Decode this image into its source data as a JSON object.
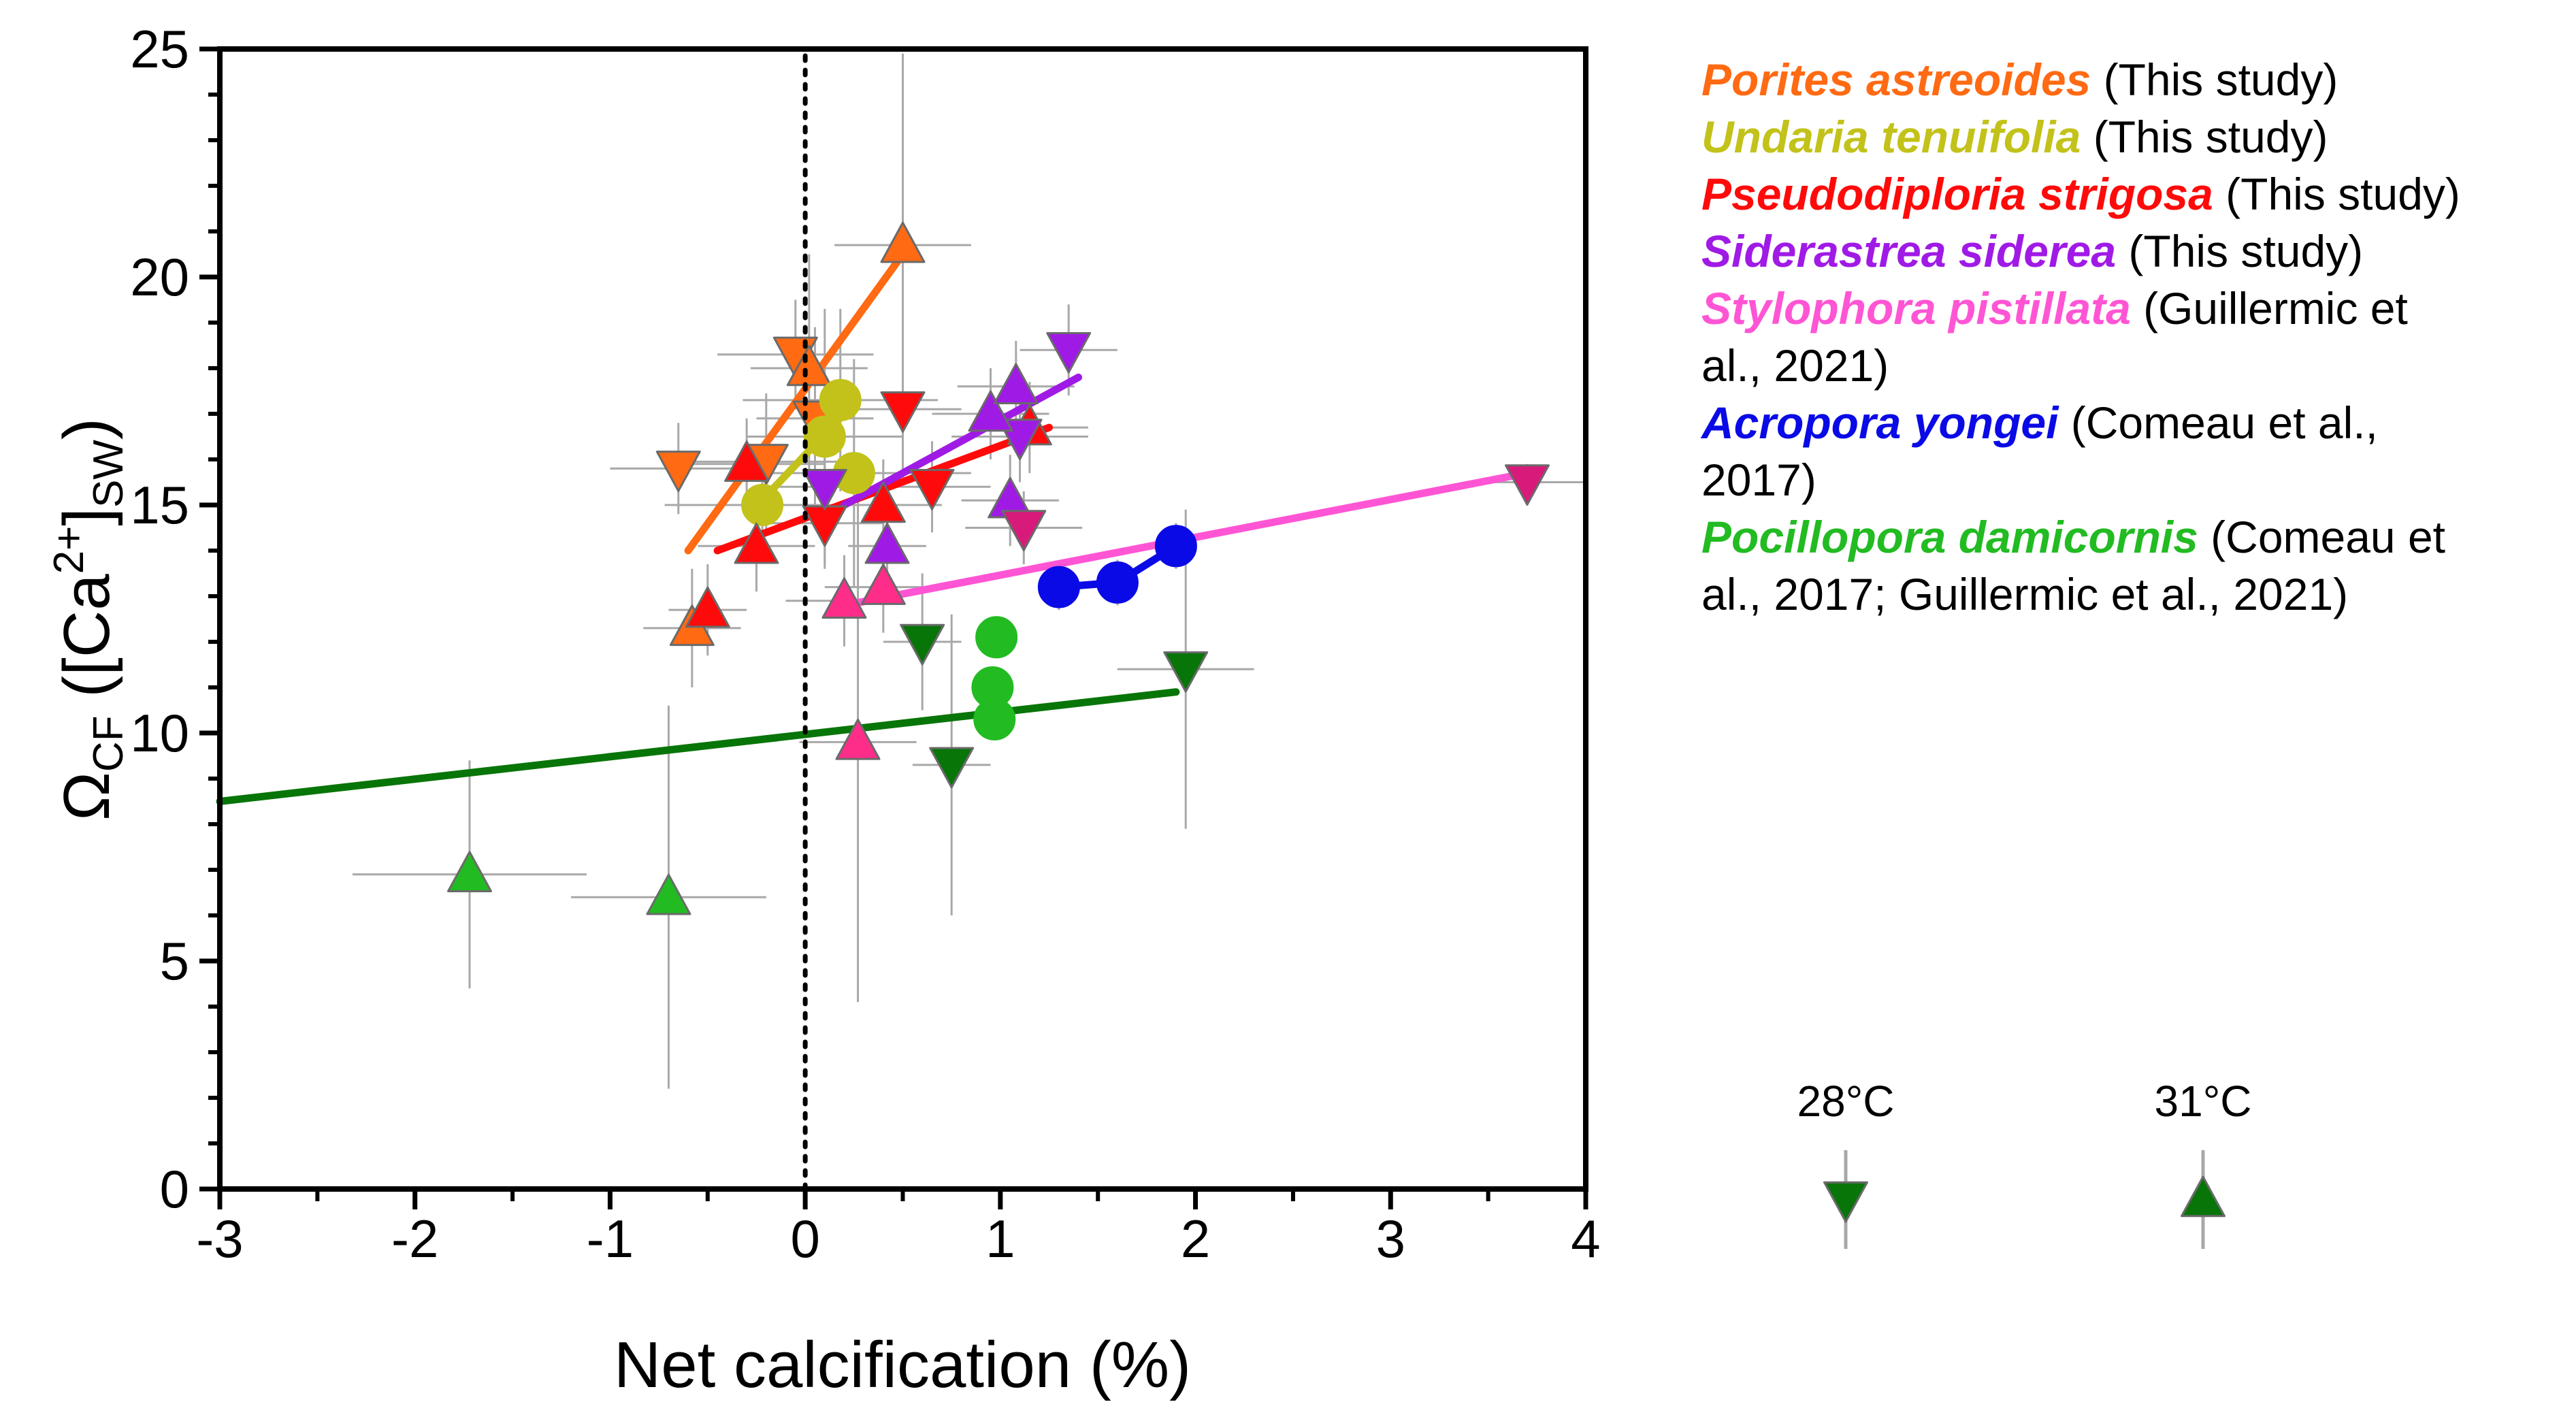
{
  "chart_data": {
    "type": "scatter",
    "xlabel": "Net calcification (%)",
    "ylabel": {
      "main": "Ω",
      "sub1": "CF",
      "open": " ([Ca",
      "sup": "2+",
      "close": "]",
      "sub2": "SW",
      "end": ")"
    },
    "xlim": [
      -3,
      4
    ],
    "ylim": [
      0,
      25
    ],
    "x_ticks": [
      -3,
      -2,
      -1,
      0,
      1,
      2,
      3,
      4
    ],
    "y_ticks": [
      0,
      5,
      10,
      15,
      20,
      25
    ],
    "x_tick_labels": [
      "-3",
      "-2",
      "-1",
      "0",
      "1",
      "2",
      "3",
      "4"
    ],
    "y_tick_labels": [
      "0",
      "5",
      "10",
      "15",
      "20",
      "25"
    ],
    "reference_line_x": 0,
    "legend": [
      {
        "species": "Porites astreoides",
        "source": " (This study)",
        "color": "#ff6a13"
      },
      {
        "species": "Undaria tenuifolia",
        "source": " (This study)",
        "color": "#c2c21a"
      },
      {
        "species": "Pseudodiploria strigosa",
        "source": " (This study)",
        "color": "#ff0a0a"
      },
      {
        "species": "Siderastrea siderea",
        "source": " (This study)",
        "color": "#a01ae6"
      },
      {
        "species": "Stylophora pistillata",
        "source": " (Guillermic et",
        "source_line2": "al., 2021)",
        "color": "#ff55d4"
      },
      {
        "species": "Acropora yongei",
        "source": " (Comeau et al.,",
        "source_line2": "2017)",
        "color": "#0a0ae6"
      },
      {
        "species": "Pocillopora damicornis",
        "source": " (Comeau et",
        "source_line2": "al., 2017; Guillermic et al., 2021)",
        "color": "#22bb22"
      }
    ],
    "temperature_key": [
      {
        "label": "28°C",
        "marker": "down",
        "color": "#087508"
      },
      {
        "label": "31°C",
        "marker": "up",
        "color": "#087508"
      }
    ],
    "series": [
      {
        "name": "Porites astreoides",
        "color": "#ff6a13",
        "line": [
          [
            -0.6,
            14.0
          ],
          [
            0.5,
            20.5
          ]
        ],
        "points": [
          {
            "x": -0.65,
            "y": 15.8,
            "m": "down",
            "ex": 0.35,
            "ey": 1.0
          },
          {
            "x": -0.2,
            "y": 15.95,
            "m": "down",
            "ex": 0.4,
            "ey": 1.5
          },
          {
            "x": -0.05,
            "y": 18.3,
            "m": "down",
            "ex": 0.4,
            "ey": 1.2
          },
          {
            "x": 0.05,
            "y": 16.9,
            "m": "down",
            "ex": 0.3,
            "ey": 2.0
          },
          {
            "x": -0.58,
            "y": 12.3,
            "m": "up",
            "ex": 0.25,
            "ey": 1.3
          },
          {
            "x": 0.02,
            "y": 18.0,
            "m": "up",
            "ex": 0.3,
            "ey": 2.5
          },
          {
            "x": 0.5,
            "y": 20.7,
            "m": "up",
            "ex": 0.35,
            "ey": 4.2
          }
        ]
      },
      {
        "name": "Undaria tenuifolia",
        "color": "#c2c21a",
        "line": [
          [
            -0.2,
            15.2
          ],
          [
            0.2,
            17.0
          ]
        ],
        "points": [
          {
            "x": -0.22,
            "y": 15.0,
            "m": "circle",
            "ex": 0.5,
            "ey": 1.2
          },
          {
            "x": 0.1,
            "y": 16.5,
            "m": "circle",
            "ex": 0.4,
            "ey": 2.8
          },
          {
            "x": 0.18,
            "y": 17.3,
            "m": "circle",
            "ex": 0.5,
            "ey": 2.0
          },
          {
            "x": 0.25,
            "y": 15.7,
            "m": "circle",
            "ex": 0.6,
            "ey": 2.5
          }
        ]
      },
      {
        "name": "Pseudodiploria strigosa",
        "color": "#ff0a0a",
        "line": [
          [
            -0.45,
            14.0
          ],
          [
            1.25,
            16.7
          ]
        ],
        "points": [
          {
            "x": 0.5,
            "y": 17.1,
            "m": "down",
            "ex": 0.3,
            "ey": 1.5
          },
          {
            "x": 0.1,
            "y": 14.6,
            "m": "down",
            "ex": 0.3,
            "ey": 1.0
          },
          {
            "x": 0.65,
            "y": 15.4,
            "m": "down",
            "ex": 0.3,
            "ey": 1.0
          },
          {
            "x": -0.3,
            "y": 15.9,
            "m": "up",
            "ex": 0.4,
            "ey": 1.0
          },
          {
            "x": -0.25,
            "y": 14.1,
            "m": "up",
            "ex": 0.3,
            "ey": 1.0
          },
          {
            "x": -0.5,
            "y": 12.7,
            "m": "up",
            "ex": 0.2,
            "ey": 1.0
          },
          {
            "x": 0.4,
            "y": 15.0,
            "m": "up",
            "ex": 0.3,
            "ey": 1.0
          },
          {
            "x": 1.15,
            "y": 16.7,
            "m": "up",
            "ex": 0.3,
            "ey": 1.0
          }
        ]
      },
      {
        "name": "Siderastrea siderea",
        "color": "#a01ae6",
        "line": [
          [
            0.2,
            15.0
          ],
          [
            1.4,
            17.8
          ]
        ],
        "points": [
          {
            "x": 0.1,
            "y": 15.4,
            "m": "down",
            "ex": 0.25,
            "ey": 0.8
          },
          {
            "x": 1.35,
            "y": 18.4,
            "m": "down",
            "ex": 0.25,
            "ey": 1.0
          },
          {
            "x": 1.1,
            "y": 16.5,
            "m": "down",
            "ex": 0.35,
            "ey": 1.0
          },
          {
            "x": 0.95,
            "y": 17.0,
            "m": "up",
            "ex": 0.3,
            "ey": 1.0
          },
          {
            "x": 1.08,
            "y": 17.6,
            "m": "up",
            "ex": 0.3,
            "ey": 1.0
          },
          {
            "x": 1.05,
            "y": 15.1,
            "m": "up",
            "ex": 0.25,
            "ey": 1.0
          },
          {
            "x": 0.42,
            "y": 14.1,
            "m": "up",
            "ex": 0.2,
            "ey": 1.0
          }
        ]
      },
      {
        "name": "Stylophora pistillata",
        "color": "#ff55d4",
        "line": [
          [
            0.2,
            12.8
          ],
          [
            3.7,
            15.7
          ]
        ],
        "points": [
          {
            "x": 3.7,
            "y": 15.5,
            "m": "down",
            "ex": 0.3,
            "ey": 0.4,
            "fill": "#d81b7a"
          },
          {
            "x": 1.12,
            "y": 14.5,
            "m": "down",
            "ex": 0.3,
            "ey": 0.8,
            "fill": "#d81b7a"
          },
          {
            "x": 0.2,
            "y": 12.9,
            "m": "up",
            "ex": 0.3,
            "ey": 1.0,
            "fill": "#ff2d8a"
          },
          {
            "x": 0.4,
            "y": 13.2,
            "m": "up",
            "ex": 0.3,
            "ey": 1.0,
            "fill": "#ff2d8a"
          },
          {
            "x": 0.27,
            "y": 9.8,
            "m": "up",
            "ex": 0.3,
            "ey": 5.7,
            "fill": "#ff2d8a"
          }
        ]
      },
      {
        "name": "Acropora yongei",
        "color": "#0a0ae6",
        "line": [
          [
            1.3,
            13.2
          ],
          [
            1.6,
            13.3
          ],
          [
            1.9,
            14.1
          ]
        ],
        "points": [
          {
            "x": 1.3,
            "y": 13.2,
            "m": "circle",
            "ex": 0.1,
            "ey": 0.5
          },
          {
            "x": 1.6,
            "y": 13.3,
            "m": "circle",
            "ex": 0.1,
            "ey": 0.5
          },
          {
            "x": 1.9,
            "y": 14.1,
            "m": "circle",
            "ex": 0.1,
            "ey": 0.5
          }
        ]
      },
      {
        "name": "Pocillopora damicornis",
        "color": "#22bb22",
        "line": [
          [
            -3,
            8.5
          ],
          [
            1.9,
            10.9
          ]
        ],
        "line_color": "#087508",
        "points": [
          {
            "x": 0.98,
            "y": 12.1,
            "m": "circle",
            "ex": 0.05,
            "ey": 0.4
          },
          {
            "x": 0.96,
            "y": 11.0,
            "m": "circle",
            "ex": 0.05,
            "ey": 0.4
          },
          {
            "x": 0.97,
            "y": 10.3,
            "m": "circle",
            "ex": 0.05,
            "ey": 0.4
          },
          {
            "x": 0.6,
            "y": 12.0,
            "m": "down",
            "ex": 0.2,
            "ey": 1.5,
            "fill": "#087508"
          },
          {
            "x": 0.75,
            "y": 9.3,
            "m": "down",
            "ex": 0.2,
            "ey": 3.3,
            "fill": "#087508"
          },
          {
            "x": 1.95,
            "y": 11.4,
            "m": "down",
            "ex": 0.35,
            "ey": 3.5,
            "fill": "#087508"
          },
          {
            "x": -1.72,
            "y": 6.9,
            "m": "up",
            "ex": 0.6,
            "ey": 2.5
          },
          {
            "x": -0.7,
            "y": 6.4,
            "m": "up",
            "ex": 0.5,
            "ey": 4.2
          }
        ]
      }
    ]
  }
}
